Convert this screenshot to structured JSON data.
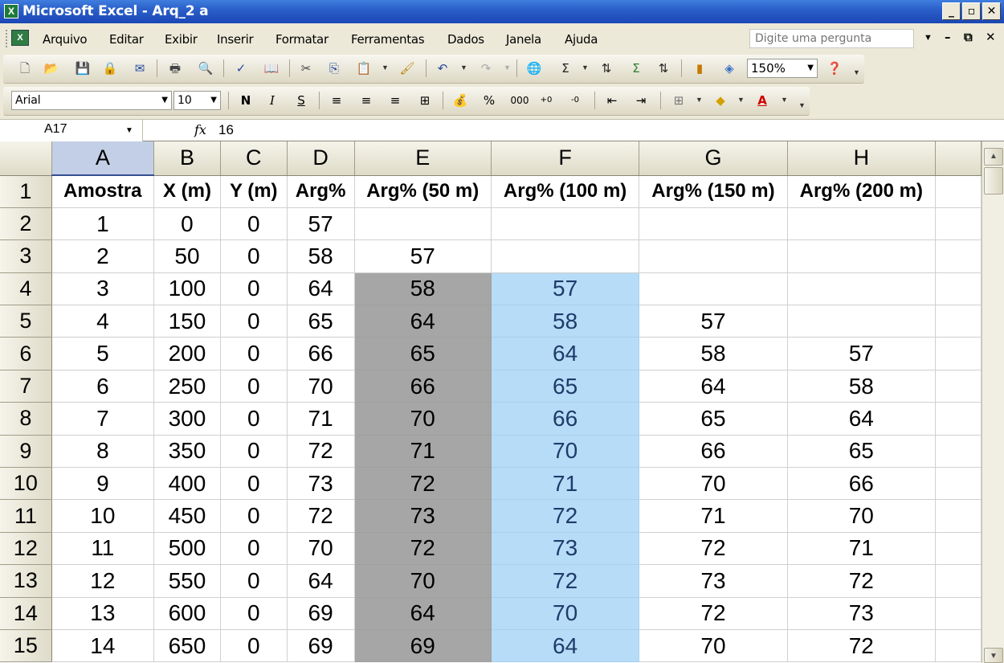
{
  "window": {
    "title": "Microsoft Excel - Arq_2 a",
    "controls": [
      "_",
      "▫",
      "✕"
    ]
  },
  "menubar": {
    "items": [
      "Arquivo",
      "Editar",
      "Exibir",
      "Inserir",
      "Formatar",
      "Ferramentas",
      "Dados",
      "Janela",
      "Ajuda"
    ],
    "ask_placeholder": "Digite uma pergunta",
    "doc_controls": [
      "–",
      "⧉",
      "✕"
    ]
  },
  "standard_toolbar": {
    "zoom": "150%"
  },
  "formatting_toolbar": {
    "font": "Arial",
    "size": "10",
    "bold": "N",
    "italic": "I",
    "underline": "S",
    "percent": "%",
    "thousands": "000",
    "font_color_letter": "A"
  },
  "formula_bar": {
    "cell_ref": "A17",
    "fx": "fx",
    "value": "16"
  },
  "sheet": {
    "columns": [
      "A",
      "B",
      "C",
      "D",
      "E",
      "F",
      "G",
      "H"
    ],
    "header_row": [
      "Amostra",
      "X (m)",
      "Y (m)",
      "Arg%",
      "Arg% (50 m)",
      "Arg% (100 m)",
      "Arg% (150 m)",
      "Arg% (200 m)"
    ],
    "rows": [
      {
        "n": "2",
        "cells": [
          "1",
          "0",
          "0",
          "57",
          "",
          "",
          "",
          ""
        ]
      },
      {
        "n": "3",
        "cells": [
          "2",
          "50",
          "0",
          "58",
          "57",
          "",
          "",
          ""
        ]
      },
      {
        "n": "4",
        "cells": [
          "3",
          "100",
          "0",
          "64",
          "58",
          "57",
          "",
          ""
        ]
      },
      {
        "n": "5",
        "cells": [
          "4",
          "150",
          "0",
          "65",
          "64",
          "58",
          "57",
          ""
        ]
      },
      {
        "n": "6",
        "cells": [
          "5",
          "200",
          "0",
          "66",
          "65",
          "64",
          "58",
          "57"
        ]
      },
      {
        "n": "7",
        "cells": [
          "6",
          "250",
          "0",
          "70",
          "66",
          "65",
          "64",
          "58"
        ]
      },
      {
        "n": "8",
        "cells": [
          "7",
          "300",
          "0",
          "71",
          "70",
          "66",
          "65",
          "64"
        ]
      },
      {
        "n": "9",
        "cells": [
          "8",
          "350",
          "0",
          "72",
          "71",
          "70",
          "66",
          "65"
        ]
      },
      {
        "n": "10",
        "cells": [
          "9",
          "400",
          "0",
          "73",
          "72",
          "71",
          "70",
          "66"
        ]
      },
      {
        "n": "11",
        "cells": [
          "10",
          "450",
          "0",
          "72",
          "73",
          "72",
          "71",
          "70"
        ]
      },
      {
        "n": "12",
        "cells": [
          "11",
          "500",
          "0",
          "70",
          "72",
          "73",
          "72",
          "71"
        ]
      },
      {
        "n": "13",
        "cells": [
          "12",
          "550",
          "0",
          "64",
          "70",
          "72",
          "73",
          "72"
        ]
      },
      {
        "n": "14",
        "cells": [
          "13",
          "600",
          "0",
          "69",
          "64",
          "70",
          "72",
          "73"
        ]
      },
      {
        "n": "15",
        "cells": [
          "14",
          "650",
          "0",
          "69",
          "69",
          "64",
          "70",
          "72"
        ]
      }
    ]
  },
  "colors": {
    "grey_fill": "#a6a6a6",
    "blue_fill": "#b6dcf7",
    "title_bar": "#2b5fc9"
  },
  "icons": [
    "new-icon",
    "open-icon",
    "save-icon",
    "permission-icon",
    "email-icon",
    "print-icon",
    "print-preview-icon",
    "spelling-icon",
    "research-icon",
    "cut-icon",
    "copy-icon",
    "paste-icon",
    "format-painter-icon",
    "undo-icon",
    "redo-icon",
    "hyperlink-icon",
    "autosum-icon",
    "sort-ascending-icon",
    "function-icon",
    "sort-descending-icon",
    "chart-wizard-icon",
    "drawing-icon",
    "help-icon"
  ]
}
